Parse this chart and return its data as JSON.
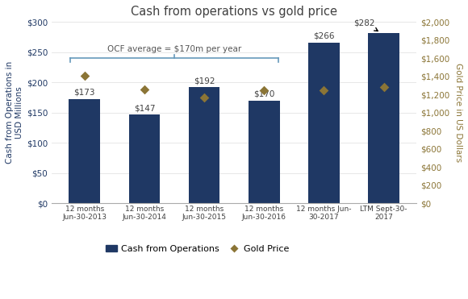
{
  "title": "Cash from operations vs gold price",
  "categories": [
    "12 months\nJun-30-2013",
    "12 months\nJun-30-2014",
    "12 months\nJun-30-2015",
    "12 months\nJun-30-2016",
    "12 months Jun-\n30-2017",
    "LTM Sept-30-\n2017"
  ],
  "ocf_values": [
    173,
    147,
    192,
    170,
    266,
    282
  ],
  "gold_prices": [
    1410,
    1260,
    1165,
    1250,
    1250,
    1280
  ],
  "bar_color": "#1F3864",
  "gold_color": "#8B7536",
  "left_ylabel": "Cash from Operations in\nUSD Millions",
  "right_ylabel": "Gold Price in US Dollars",
  "left_ylim": [
    0,
    300
  ],
  "right_ylim": [
    0,
    2000
  ],
  "left_yticks": [
    0,
    50,
    100,
    150,
    200,
    250,
    300
  ],
  "left_yticklabels": [
    "$0",
    "$50",
    "$100",
    "$150",
    "$200",
    "$250",
    "$300"
  ],
  "right_yticks": [
    0,
    200,
    400,
    600,
    800,
    1000,
    1200,
    1400,
    1600,
    1800,
    2000
  ],
  "right_yticklabels": [
    "$0",
    "$200",
    "$400",
    "$600",
    "$800",
    "$1,000",
    "$1,200",
    "$1,400",
    "$1,600",
    "$1,800",
    "$2,000"
  ],
  "ocf_annotation": "OCF average = $170m per year",
  "legend_bar_label": "Cash from Operations",
  "legend_marker_label": "Gold Price",
  "title_color": "#404040",
  "left_axis_color": "#1F3864",
  "right_axis_color": "#8B7536",
  "bar_labels": [
    "$173",
    "$147",
    "$192",
    "$170",
    "$266",
    "$282"
  ],
  "label_color": "#404040"
}
